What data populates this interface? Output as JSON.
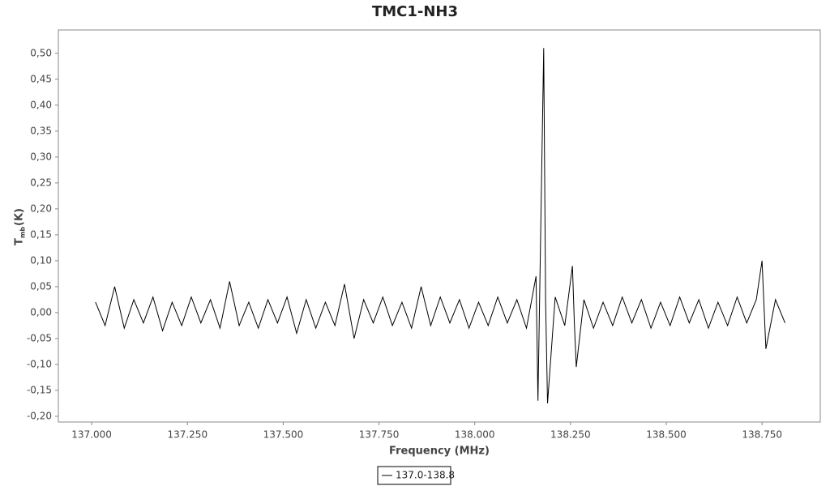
{
  "chart_data": {
    "type": "line",
    "title": "TMC1-NH3",
    "xlabel": "Frequency (MHz)",
    "ylabel": "T",
    "ylabel_sub": "mb",
    "ylabel_unit": "(K)",
    "x": [
      137.01,
      137.035,
      137.06,
      137.085,
      137.11,
      137.135,
      137.16,
      137.185,
      137.21,
      137.235,
      137.26,
      137.285,
      137.31,
      137.335,
      137.36,
      137.385,
      137.41,
      137.435,
      137.46,
      137.485,
      137.51,
      137.535,
      137.56,
      137.585,
      137.61,
      137.635,
      137.66,
      137.685,
      137.71,
      137.735,
      137.76,
      137.785,
      137.81,
      137.835,
      137.86,
      137.885,
      137.91,
      137.935,
      137.96,
      137.985,
      138.01,
      138.035,
      138.06,
      138.085,
      138.11,
      138.135,
      138.16,
      138.165,
      138.18,
      138.185,
      138.19,
      138.21,
      138.235,
      138.255,
      138.26,
      138.265,
      138.285,
      138.31,
      138.335,
      138.36,
      138.385,
      138.41,
      138.435,
      138.46,
      138.485,
      138.51,
      138.535,
      138.56,
      138.585,
      138.61,
      138.635,
      138.66,
      138.685,
      138.71,
      138.735,
      138.75,
      138.76,
      138.785,
      138.81
    ],
    "series": [
      {
        "name": "137.0-138.8",
        "color": "#000000",
        "values": [
          0.02,
          -0.025,
          0.05,
          -0.03,
          0.025,
          -0.02,
          0.03,
          -0.035,
          0.02,
          -0.025,
          0.03,
          -0.02,
          0.025,
          -0.03,
          0.06,
          -0.025,
          0.02,
          -0.03,
          0.025,
          -0.02,
          0.03,
          -0.04,
          0.025,
          -0.03,
          0.02,
          -0.025,
          0.055,
          -0.05,
          0.025,
          -0.02,
          0.03,
          -0.025,
          0.02,
          -0.03,
          0.05,
          -0.025,
          0.03,
          -0.02,
          0.025,
          -0.03,
          0.02,
          -0.025,
          0.03,
          -0.02,
          0.025,
          -0.03,
          0.07,
          -0.17,
          0.51,
          0.02,
          -0.175,
          0.03,
          -0.025,
          0.09,
          -0.02,
          -0.105,
          0.025,
          -0.03,
          0.02,
          -0.025,
          0.03,
          -0.02,
          0.025,
          -0.03,
          0.02,
          -0.025,
          0.03,
          -0.02,
          0.025,
          -0.03,
          0.02,
          -0.025,
          0.03,
          -0.02,
          0.025,
          0.1,
          -0.07,
          0.025,
          -0.02
        ]
      }
    ],
    "xlim": [
      136.913,
      138.902
    ],
    "ylim": [
      -0.211,
      0.545
    ],
    "xticks": [
      {
        "value": 137,
        "label": "137.000"
      },
      {
        "value": 137.25,
        "label": "137.250"
      },
      {
        "value": 137.5,
        "label": "137.500"
      },
      {
        "value": 137.75,
        "label": "137.750"
      },
      {
        "value": 138,
        "label": "138.000"
      },
      {
        "value": 138.25,
        "label": "138.250"
      },
      {
        "value": 138.5,
        "label": "138.500"
      },
      {
        "value": 138.75,
        "label": "138.750"
      }
    ],
    "yticks": [
      {
        "value": -0.2,
        "label": "-0,20"
      },
      {
        "value": -0.15,
        "label": "-0,15"
      },
      {
        "value": -0.1,
        "label": "-0,10"
      },
      {
        "value": -0.05,
        "label": "-0,05"
      },
      {
        "value": 0,
        "label": "0,00"
      },
      {
        "value": 0.05,
        "label": "0,05"
      },
      {
        "value": 0.1,
        "label": "0,10"
      },
      {
        "value": 0.15,
        "label": "0,15"
      },
      {
        "value": 0.2,
        "label": "0,20"
      },
      {
        "value": 0.25,
        "label": "0,25"
      },
      {
        "value": 0.3,
        "label": "0,30"
      },
      {
        "value": 0.35,
        "label": "0,35"
      },
      {
        "value": 0.4,
        "label": "0,40"
      },
      {
        "value": 0.45,
        "label": "0,45"
      },
      {
        "value": 0.5,
        "label": "0,50"
      }
    ],
    "grid": false,
    "legend": "bottom"
  }
}
